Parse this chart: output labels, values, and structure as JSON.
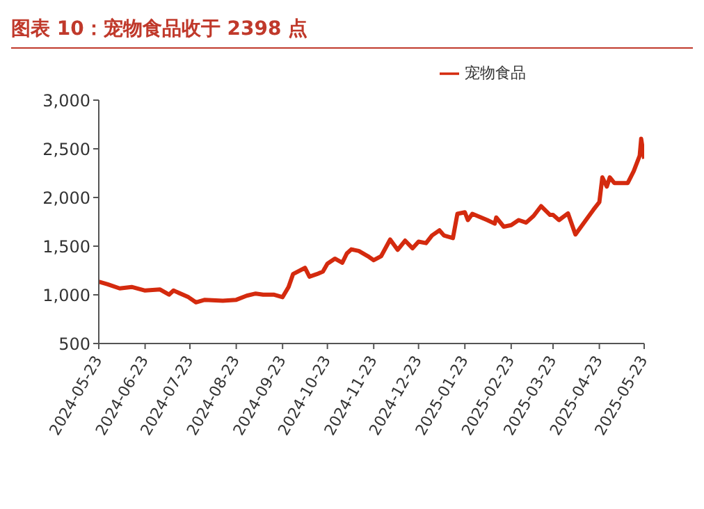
{
  "chart_data": {
    "type": "line",
    "title": "图表 10：宠物食品收于 2398 点",
    "x": [
      "2024-05-23",
      "2024-05-29",
      "2024-06-06",
      "2024-06-14",
      "2024-06-23",
      "2024-07-03",
      "2024-07-09",
      "2024-07-12",
      "2024-07-22",
      "2024-07-27",
      "2024-08-02",
      "2024-08-14",
      "2024-08-23",
      "2024-08-30",
      "2024-09-05",
      "2024-09-10",
      "2024-09-17",
      "2024-09-23",
      "2024-09-27",
      "2024-09-30",
      "2024-10-08",
      "2024-10-11",
      "2024-10-16",
      "2024-10-20",
      "2024-10-23",
      "2024-10-28",
      "2024-11-02",
      "2024-11-05",
      "2024-11-08",
      "2024-11-13",
      "2024-11-19",
      "2024-11-23",
      "2024-11-28",
      "2024-12-04",
      "2024-12-09",
      "2024-12-14",
      "2024-12-19",
      "2024-12-23",
      "2024-12-28",
      "2025-01-01",
      "2025-01-06",
      "2025-01-09",
      "2025-01-15",
      "2025-01-18",
      "2025-01-23",
      "2025-01-25",
      "2025-01-28",
      "2025-02-07",
      "2025-02-12",
      "2025-02-13",
      "2025-02-18",
      "2025-02-23",
      "2025-02-28",
      "2025-03-05",
      "2025-03-10",
      "2025-03-15",
      "2025-03-21",
      "2025-03-23",
      "2025-03-27",
      "2025-04-02",
      "2025-04-07",
      "2025-04-14",
      "2025-04-19",
      "2025-04-23",
      "2025-04-25",
      "2025-04-28",
      "2025-04-30",
      "2025-05-03",
      "2025-05-12",
      "2025-05-16",
      "2025-05-20",
      "2025-05-21",
      "2025-05-23"
    ],
    "series": [
      {
        "name": "宠物食品",
        "color": "#d42a0e",
        "values": [
          1134,
          1108,
          1066,
          1081,
          1044,
          1055,
          1002,
          1044,
          976,
          923,
          949,
          939,
          949,
          991,
          1013,
          1002,
          1002,
          976,
          1081,
          1213,
          1277,
          1187,
          1213,
          1240,
          1319,
          1372,
          1330,
          1425,
          1467,
          1451,
          1398,
          1356,
          1398,
          1568,
          1462,
          1557,
          1478,
          1546,
          1531,
          1610,
          1663,
          1610,
          1583,
          1832,
          1848,
          1768,
          1832,
          1768,
          1731,
          1795,
          1700,
          1716,
          1768,
          1742,
          1811,
          1911,
          1821,
          1821,
          1768,
          1837,
          1620,
          1768,
          1874,
          1953,
          2207,
          2112,
          2207,
          2149,
          2149,
          2270,
          2429,
          2603,
          2398
        ]
      }
    ],
    "xlim": [
      "2024-05-23",
      "2025-05-23"
    ],
    "xticks": [
      "2024-05-23",
      "2024-06-23",
      "2024-07-23",
      "2024-08-23",
      "2024-09-23",
      "2024-10-23",
      "2024-11-23",
      "2024-12-23",
      "2025-01-23",
      "2025-02-23",
      "2025-03-23",
      "2025-04-23",
      "2025-05-23"
    ],
    "ylim": [
      500,
      3000
    ],
    "yticks": [
      {
        "value": 500,
        "label": "500"
      },
      {
        "value": 1000,
        "label": "1,000"
      },
      {
        "value": 1500,
        "label": "1,500"
      },
      {
        "value": 2000,
        "label": "2,000"
      },
      {
        "value": 2500,
        "label": "2,500"
      },
      {
        "value": 3000,
        "label": "3,000"
      }
    ],
    "grid": false,
    "legend": "top right",
    "marker": "none",
    "line_style": "solid"
  }
}
